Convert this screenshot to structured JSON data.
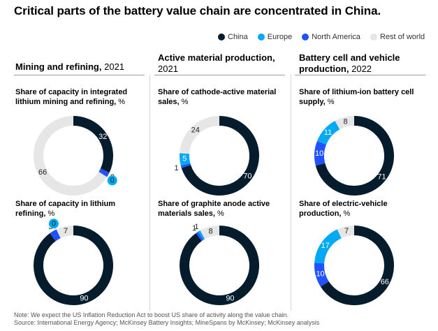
{
  "title": "Critical parts of the battery value chain are concentrated in China.",
  "legend": [
    {
      "label": "China",
      "color": "#051c2c"
    },
    {
      "label": "Europe",
      "color": "#00a9f4"
    },
    {
      "label": "North America",
      "color": "#2251ff"
    },
    {
      "label": "Rest of world",
      "color": "#e6e6e6"
    }
  ],
  "columns": [
    {
      "bold": "Mining and refining,",
      "rest": " 2021"
    },
    {
      "bold": "Active material production,",
      "rest": " 2021"
    },
    {
      "bold": "Battery cell and vehicle production,",
      "rest": " 2022"
    }
  ],
  "chart_data": [
    {
      "type": "pie",
      "title_bold": "Share of capacity in integrated lithium mining and refining,",
      "title_rest": " %",
      "series": [
        {
          "name": "China",
          "value": 32
        },
        {
          "name": "Europe",
          "value": 0
        },
        {
          "name": "North America",
          "value": 2
        },
        {
          "name": "Rest of world",
          "value": 66
        }
      ]
    },
    {
      "type": "pie",
      "title_bold": "Share of capacity in lithium refining,",
      "title_rest": " %",
      "series": [
        {
          "name": "China",
          "value": 90
        },
        {
          "name": "Europe",
          "value": 0
        },
        {
          "name": "North America",
          "value": 3
        },
        {
          "name": "Rest of world",
          "value": 7
        }
      ]
    },
    {
      "type": "pie",
      "title_bold": "Share of cathode-active material sales,",
      "title_rest": " %",
      "series": [
        {
          "name": "China",
          "value": 70
        },
        {
          "name": "Europe",
          "value": 5
        },
        {
          "name": "North America",
          "value": 1
        },
        {
          "name": "Rest of world",
          "value": 24
        }
      ]
    },
    {
      "type": "pie",
      "title_bold": "Share of graphite anode active materials sales,",
      "title_rest": " %",
      "series": [
        {
          "name": "China",
          "value": 90
        },
        {
          "name": "Europe",
          "value": 1
        },
        {
          "name": "North America",
          "value": 1
        },
        {
          "name": "Rest of world",
          "value": 8
        }
      ]
    },
    {
      "type": "pie",
      "title_bold": "Share of lithium-ion battery cell supply,",
      "title_rest": " %",
      "series": [
        {
          "name": "China",
          "value": 71
        },
        {
          "name": "Europe",
          "value": 11
        },
        {
          "name": "North America",
          "value": 10
        },
        {
          "name": "Rest of world",
          "value": 8
        }
      ]
    },
    {
      "type": "pie",
      "title_bold": "Share of electric-vehicle production,",
      "title_rest": " %",
      "series": [
        {
          "name": "China",
          "value": 66
        },
        {
          "name": "Europe",
          "value": 17
        },
        {
          "name": "North America",
          "value": 10
        },
        {
          "name": "Rest of world",
          "value": 7
        }
      ]
    }
  ],
  "footnote": {
    "note": "Note: We expect the US Inflation Reduction Act to boost US share of activity along the value chain.",
    "source": "Source: International Energy Agency; McKinsey Battery Insights; MineSpans by McKinsey; McKinsey analysis"
  }
}
